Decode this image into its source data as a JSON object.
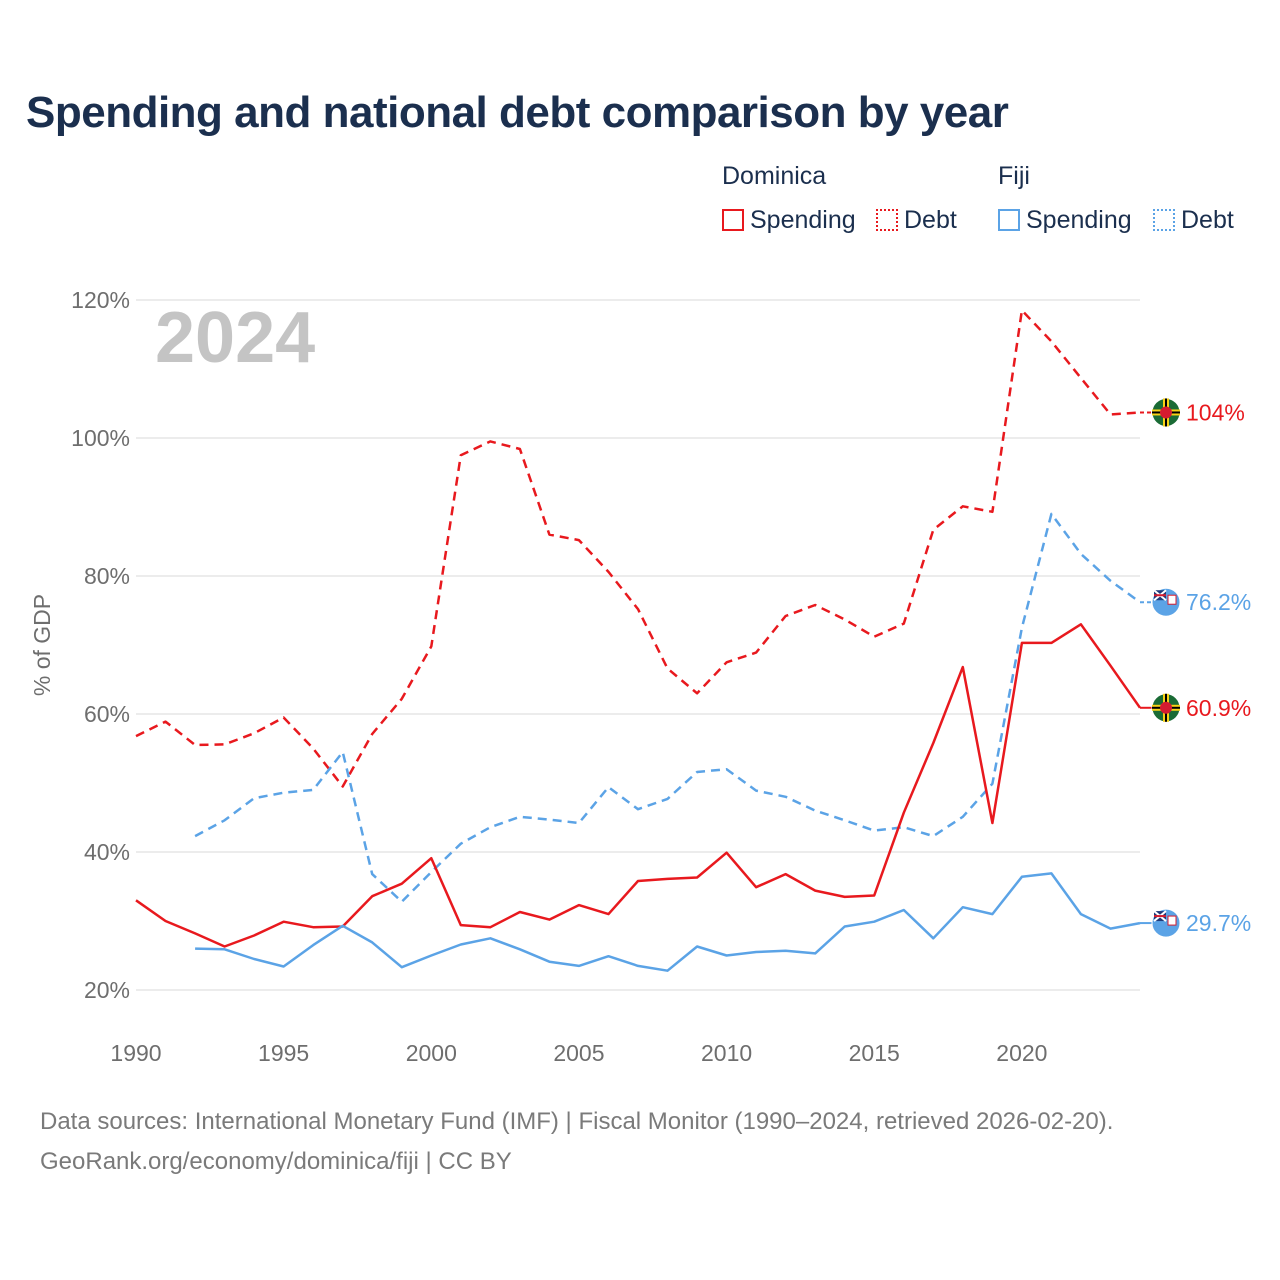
{
  "title": "Spending and national debt comparison by year",
  "legend": {
    "groups": [
      {
        "name": "Dominica",
        "items": [
          {
            "label": "Spending",
            "style": "solid",
            "color": "#e8191e"
          },
          {
            "label": "Debt",
            "style": "dotted",
            "color": "#e8191e"
          }
        ]
      },
      {
        "name": "Fiji",
        "items": [
          {
            "label": "Spending",
            "style": "solid",
            "color": "#5ba3e6"
          },
          {
            "label": "Debt",
            "style": "dotted",
            "color": "#5ba3e6"
          }
        ]
      }
    ]
  },
  "footer": {
    "line1": "Data sources: International Monetary Fund (IMF) | Fiscal Monitor (1990–2024, retrieved 2026-02-20).",
    "line2": "GeoRank.org/economy/dominica/fiji | CC BY"
  },
  "chart_data": {
    "type": "line",
    "year_label": "2024",
    "ylabel": "% of GDP",
    "xlim": [
      1990,
      2024
    ],
    "ylim": [
      20,
      120
    ],
    "x_ticks": [
      1990,
      1995,
      2000,
      2005,
      2010,
      2015,
      2020
    ],
    "x_tick_labels": [
      "1990",
      "1995",
      "2000",
      "2005",
      "2010",
      "2015",
      "2020"
    ],
    "y_ticks": [
      20,
      40,
      60,
      80,
      100,
      120
    ],
    "y_tick_labels": [
      "20%",
      "40%",
      "60%",
      "80%",
      "100%",
      "120%"
    ],
    "grid": true,
    "series": [
      {
        "name": "Dominica Debt",
        "country": "Dominica",
        "metric": "Debt",
        "style": "dashed",
        "color": "#e8191e",
        "x": [
          1990,
          1991,
          1992,
          1993,
          1994,
          1995,
          1996,
          1997,
          1998,
          1999,
          2000,
          2001,
          2002,
          2003,
          2004,
          2005,
          2006,
          2007,
          2008,
          2009,
          2010,
          2011,
          2012,
          2013,
          2014,
          2015,
          2016,
          2017,
          2018,
          2019,
          2020,
          2021,
          2022,
          2023,
          2024
        ],
        "values": [
          56.8,
          58.9,
          55.5,
          55.6,
          57.2,
          59.5,
          55.0,
          49.5,
          57.1,
          62.2,
          69.8,
          97.5,
          99.5,
          98.4,
          86.0,
          85.2,
          80.6,
          75.2,
          66.6,
          63.0,
          67.5,
          68.9,
          74.2,
          75.8,
          73.7,
          71.2,
          73.1,
          86.7,
          90.1,
          89.3,
          118.5,
          114.0,
          108.7,
          103.4,
          103.7
        ],
        "end_label": "104%"
      },
      {
        "name": "Fiji Debt",
        "country": "Fiji",
        "metric": "Debt",
        "style": "dashed",
        "color": "#5ba3e6",
        "x": [
          1992,
          1993,
          1994,
          1995,
          1996,
          1997,
          1998,
          1999,
          2000,
          2001,
          2002,
          2003,
          2004,
          2005,
          2006,
          2007,
          2008,
          2009,
          2010,
          2011,
          2012,
          2013,
          2014,
          2015,
          2016,
          2017,
          2018,
          2019,
          2020,
          2021,
          2022,
          2023,
          2024
        ],
        "values": [
          42.3,
          44.6,
          47.8,
          48.6,
          49.0,
          54.5,
          36.8,
          32.8,
          37.1,
          41.2,
          43.6,
          45.1,
          44.7,
          44.2,
          49.4,
          46.2,
          47.7,
          51.6,
          52.0,
          48.9,
          48.0,
          46.0,
          44.6,
          43.1,
          43.6,
          42.3,
          45.1,
          49.9,
          72.5,
          89.0,
          83.2,
          79.3,
          76.2
        ],
        "end_label": "76.2%"
      },
      {
        "name": "Dominica Spending",
        "country": "Dominica",
        "metric": "Spending",
        "style": "solid",
        "color": "#e8191e",
        "x": [
          1990,
          1991,
          1992,
          1993,
          1994,
          1995,
          1996,
          1997,
          1998,
          1999,
          2000,
          2001,
          2002,
          2003,
          2004,
          2005,
          2006,
          2007,
          2008,
          2009,
          2010,
          2011,
          2012,
          2013,
          2014,
          2015,
          2016,
          2017,
          2018,
          2019,
          2020,
          2021,
          2022,
          2023,
          2024
        ],
        "values": [
          33.0,
          30.0,
          28.2,
          26.3,
          27.9,
          29.9,
          29.1,
          29.2,
          33.6,
          35.4,
          39.1,
          29.4,
          29.1,
          31.3,
          30.2,
          32.3,
          31.0,
          35.8,
          36.1,
          36.3,
          39.9,
          34.9,
          36.8,
          34.4,
          33.5,
          33.7,
          45.7,
          55.8,
          66.8,
          44.2,
          70.3,
          70.3,
          73.0,
          67.0,
          60.9
        ],
        "end_label": "60.9%"
      },
      {
        "name": "Fiji Spending",
        "country": "Fiji",
        "metric": "Spending",
        "style": "solid",
        "color": "#5ba3e6",
        "x": [
          1992,
          1993,
          1994,
          1995,
          1996,
          1997,
          1998,
          1999,
          2000,
          2001,
          2002,
          2003,
          2004,
          2005,
          2006,
          2007,
          2008,
          2009,
          2010,
          2011,
          2012,
          2013,
          2014,
          2015,
          2016,
          2017,
          2018,
          2019,
          2020,
          2021,
          2022,
          2023,
          2024
        ],
        "values": [
          26.0,
          25.9,
          24.5,
          23.4,
          26.5,
          29.3,
          26.9,
          23.3,
          25.0,
          26.6,
          27.5,
          25.9,
          24.1,
          23.5,
          24.9,
          23.5,
          22.8,
          26.3,
          25.0,
          25.5,
          25.7,
          25.3,
          29.2,
          29.9,
          31.6,
          27.5,
          32.0,
          31.0,
          36.4,
          36.9,
          31.0,
          28.9,
          29.7
        ],
        "end_label": "29.7%"
      }
    ]
  }
}
